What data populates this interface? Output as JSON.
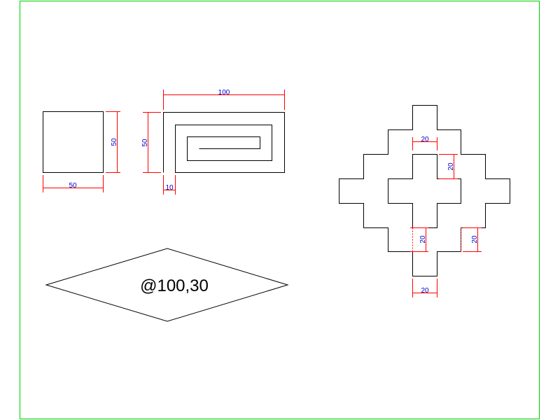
{
  "colors": {
    "frame": "#00cc00",
    "geometry": "#000000",
    "dimension_line": "#ff0000",
    "dimension_text": "#0000cc",
    "background": "#ffffff"
  },
  "square": {
    "width_dim": "50",
    "height_dim": "50"
  },
  "spiral_rect": {
    "width_dim": "100",
    "height_dim": "50",
    "offset_dim": "10"
  },
  "diamond": {
    "label": "@100,30"
  },
  "stepped_cross": {
    "dim_top": "20",
    "dim_inner_vertical": "20",
    "dim_lower_left_vertical": "20",
    "dim_lower_right_vertical": "20",
    "dim_bottom": "20"
  }
}
